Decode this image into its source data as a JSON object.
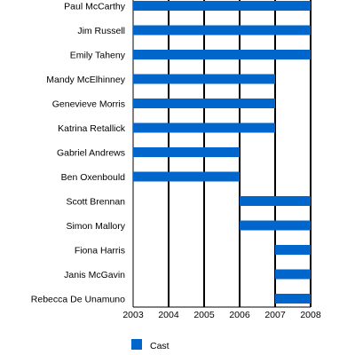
{
  "chart_data": {
    "type": "bar",
    "orientation": "horizontal",
    "series": [
      {
        "name": "Cast",
        "color": "#0066cc",
        "bars": [
          {
            "label": "Paul McCarthy",
            "start": 2003,
            "end": 2008
          },
          {
            "label": "Jim Russell",
            "start": 2003,
            "end": 2008
          },
          {
            "label": "Emily Taheny",
            "start": 2003,
            "end": 2008
          },
          {
            "label": "Mandy McElhinney",
            "start": 2003,
            "end": 2007
          },
          {
            "label": "Genevieve Morris",
            "start": 2003,
            "end": 2007
          },
          {
            "label": "Katrina Retallick",
            "start": 2003,
            "end": 2007
          },
          {
            "label": "Gabriel Andrews",
            "start": 2003,
            "end": 2006
          },
          {
            "label": "Ben Oxenbould",
            "start": 2003,
            "end": 2006
          },
          {
            "label": "Scott Brennan",
            "start": 2006,
            "end": 2008
          },
          {
            "label": "Simon Mallory",
            "start": 2006,
            "end": 2008
          },
          {
            "label": "Fiona Harris",
            "start": 2007,
            "end": 2008
          },
          {
            "label": "Janis McGavin",
            "start": 2007,
            "end": 2008
          },
          {
            "label": "Rebecca De Unamuno",
            "start": 2007,
            "end": 2008
          }
        ]
      }
    ],
    "x_ticks": [
      "2003",
      "2004",
      "2005",
      "2006",
      "2007",
      "2008"
    ],
    "xlim": [
      2003,
      2008
    ],
    "gridlines": "vertical at each year",
    "legend_position": "bottom-left",
    "legend_label": "Cast",
    "title": "",
    "xlabel": "",
    "ylabel": ""
  }
}
